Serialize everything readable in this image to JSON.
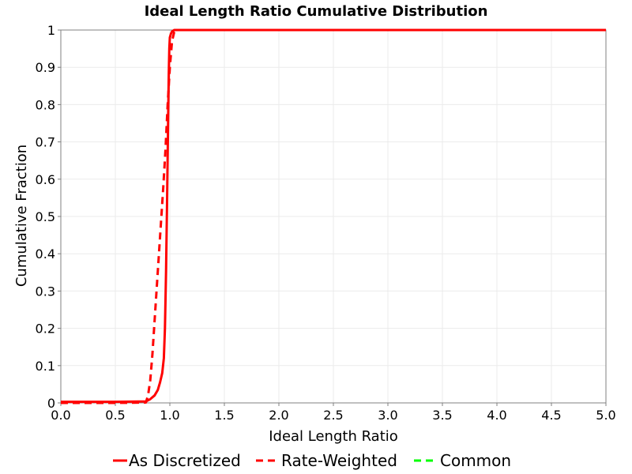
{
  "chart_data": {
    "type": "line",
    "title": "Ideal Length Ratio Cumulative Distribution",
    "xlabel": "Ideal Length Ratio",
    "ylabel": "Cumulative Fraction",
    "xlim": [
      0,
      5
    ],
    "ylim": [
      0,
      1
    ],
    "xticks": [
      "0.0",
      "0.5",
      "1.0",
      "1.5",
      "2.0",
      "2.5",
      "3.0",
      "3.5",
      "4.0",
      "4.5",
      "5.0"
    ],
    "yticks": [
      "0",
      "0.1",
      "0.2",
      "0.3",
      "0.4",
      "0.5",
      "0.6",
      "0.7",
      "0.8",
      "0.9",
      "1"
    ],
    "grid": true,
    "legend_position": "bottom",
    "series": [
      {
        "name": "As Discretized",
        "color": "#ff0000",
        "style": "solid",
        "x": [
          0.0,
          0.5,
          0.78,
          0.82,
          0.86,
          0.89,
          0.91,
          0.93,
          0.945,
          0.955,
          0.965,
          0.975,
          0.985,
          0.99,
          0.995,
          1.0,
          1.01,
          1.02,
          1.04,
          1.07,
          1.2,
          2.0,
          5.0
        ],
        "y": [
          0.003,
          0.003,
          0.004,
          0.01,
          0.02,
          0.035,
          0.055,
          0.08,
          0.12,
          0.2,
          0.35,
          0.55,
          0.78,
          0.88,
          0.95,
          0.98,
          0.99,
          0.996,
          1.0,
          1.0,
          1.0,
          1.0,
          1.0
        ]
      },
      {
        "name": "Rate-Weighted",
        "color": "#ff0000",
        "style": "dashed",
        "x": [
          0.0,
          0.5,
          0.78,
          0.8,
          0.82,
          0.84,
          0.86,
          0.88,
          0.9,
          0.92,
          0.94,
          0.96,
          0.98,
          1.0,
          1.02,
          1.04,
          1.06,
          1.1,
          1.2,
          2.0,
          5.0
        ],
        "y": [
          0.0,
          0.0,
          0.001,
          0.02,
          0.06,
          0.13,
          0.22,
          0.31,
          0.4,
          0.49,
          0.58,
          0.68,
          0.8,
          0.9,
          0.97,
          0.995,
          1.0,
          1.0,
          1.0,
          1.0,
          1.0
        ]
      },
      {
        "name": "Common",
        "color": "#00ff00",
        "style": "dashed",
        "x": [],
        "y": []
      }
    ]
  }
}
